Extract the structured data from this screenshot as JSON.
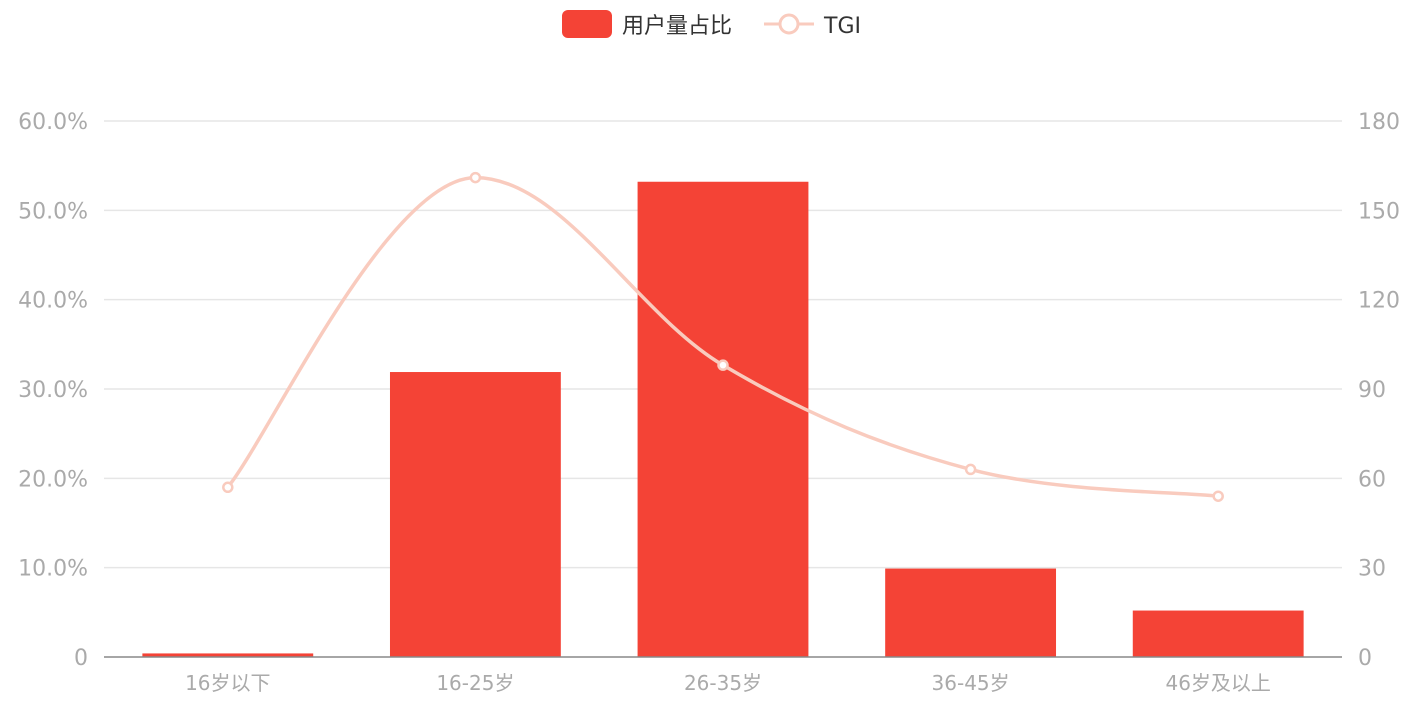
{
  "chart_data": {
    "type": "bar",
    "categories": [
      "16岁以下",
      "16-25岁",
      "26-35岁",
      "36-45岁",
      "46岁及以上"
    ],
    "series": [
      {
        "name": "用户量占比",
        "type": "bar",
        "axis": "left",
        "color": "#f44336",
        "values": [
          0.4,
          31.9,
          53.2,
          9.9,
          5.2
        ]
      },
      {
        "name": "TGI",
        "type": "line",
        "smooth": true,
        "axis": "right",
        "color": "#f9cbbe",
        "values": [
          57,
          161,
          98,
          63,
          54
        ]
      }
    ],
    "left_axis": {
      "ylim": [
        0,
        60
      ],
      "ticks": [
        0,
        10,
        20,
        30,
        40,
        50,
        60
      ],
      "tick_labels": [
        "0",
        "10.0%",
        "20.0%",
        "30.0%",
        "40.0%",
        "50.0%",
        "60.0%"
      ]
    },
    "right_axis": {
      "ylim": [
        0,
        180
      ],
      "ticks": [
        0,
        30,
        60,
        90,
        120,
        150,
        180
      ],
      "tick_labels": [
        "0",
        "30",
        "60",
        "90",
        "120",
        "150",
        "180"
      ]
    },
    "grid": true,
    "legend": "top-center",
    "title": "",
    "xlabel": "",
    "ylabel": ""
  }
}
